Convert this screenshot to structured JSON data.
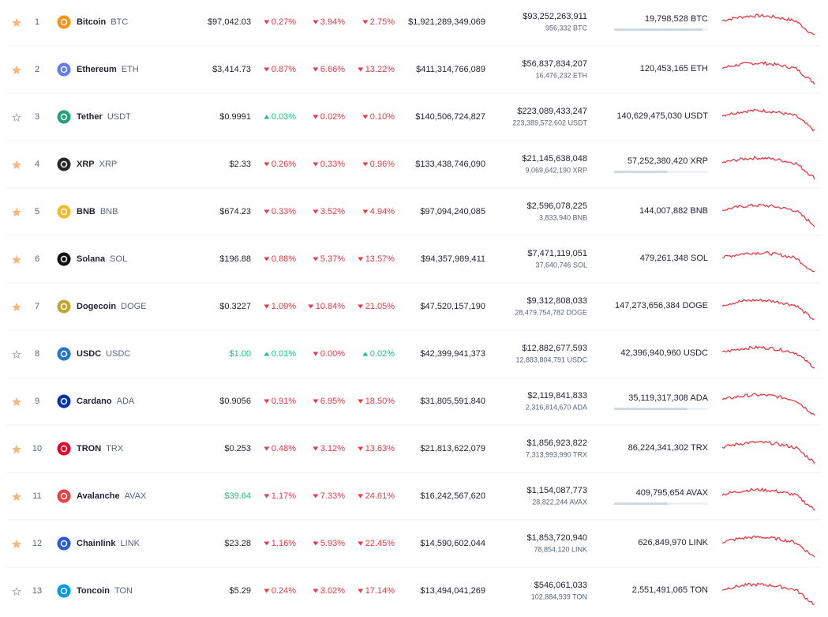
{
  "table": {
    "rows": [
      {
        "rank": "1",
        "name": "Bitcoin",
        "symbol": "BTC",
        "icon_color": "#f7931a",
        "starred": true,
        "price": "$97,042.03",
        "price_up": null,
        "change_1h": {
          "text": "0.27%",
          "up": false
        },
        "change_24h": {
          "text": "3.94%",
          "up": false
        },
        "change_7d": {
          "text": "2.75%",
          "up": false
        },
        "market_cap": "$1,921,289,349,069",
        "volume": "$93,252,263,911",
        "volume_coin": "956,332 BTC",
        "supply": "19,798,528 BTC",
        "supply_bar": 0.94
      },
      {
        "rank": "2",
        "name": "Ethereum",
        "symbol": "ETH",
        "icon_color": "#627eea",
        "starred": true,
        "price": "$3,414.73",
        "price_up": null,
        "change_1h": {
          "text": "0.87%",
          "up": false
        },
        "change_24h": {
          "text": "6.66%",
          "up": false
        },
        "change_7d": {
          "text": "13.22%",
          "up": false
        },
        "market_cap": "$411,314,766,089",
        "volume": "$56,837,834,207",
        "volume_coin": "16,476,232 ETH",
        "supply": "120,453,165 ETH",
        "supply_bar": null
      },
      {
        "rank": "3",
        "name": "Tether",
        "symbol": "USDT",
        "icon_color": "#26a17b",
        "starred": false,
        "price": "$0.9991",
        "price_up": null,
        "change_1h": {
          "text": "0.03%",
          "up": true
        },
        "change_24h": {
          "text": "0.02%",
          "up": false
        },
        "change_7d": {
          "text": "0.10%",
          "up": false
        },
        "market_cap": "$140,506,724,827",
        "volume": "$223,089,433,247",
        "volume_coin": "223,389,572,602 USDT",
        "supply": "140,629,475,030 USDT",
        "supply_bar": null
      },
      {
        "rank": "4",
        "name": "XRP",
        "symbol": "XRP",
        "icon_color": "#23292f",
        "starred": true,
        "price": "$2.33",
        "price_up": null,
        "change_1h": {
          "text": "0.26%",
          "up": false
        },
        "change_24h": {
          "text": "0.33%",
          "up": false
        },
        "change_7d": {
          "text": "0.96%",
          "up": false
        },
        "market_cap": "$133,438,746,090",
        "volume": "$21,145,638,048",
        "volume_coin": "9,069,642,190 XRP",
        "supply": "57,252,380,420 XRP",
        "supply_bar": 0.57
      },
      {
        "rank": "5",
        "name": "BNB",
        "symbol": "BNB",
        "icon_color": "#f3ba2f",
        "starred": true,
        "price": "$674.23",
        "price_up": null,
        "change_1h": {
          "text": "0.33%",
          "up": false
        },
        "change_24h": {
          "text": "3.52%",
          "up": false
        },
        "change_7d": {
          "text": "4.94%",
          "up": false
        },
        "market_cap": "$97,094,240,085",
        "volume": "$2,596,078,225",
        "volume_coin": "3,833,940 BNB",
        "supply": "144,007,882 BNB",
        "supply_bar": null
      },
      {
        "rank": "6",
        "name": "Solana",
        "symbol": "SOL",
        "icon_color": "#111111",
        "starred": true,
        "price": "$196.88",
        "price_up": null,
        "change_1h": {
          "text": "0.88%",
          "up": false
        },
        "change_24h": {
          "text": "5.37%",
          "up": false
        },
        "change_7d": {
          "text": "13.57%",
          "up": false
        },
        "market_cap": "$94,357,989,411",
        "volume": "$7,471,119,051",
        "volume_coin": "37,640,746 SOL",
        "supply": "479,261,348 SOL",
        "supply_bar": null
      },
      {
        "rank": "7",
        "name": "Dogecoin",
        "symbol": "DOGE",
        "icon_color": "#c2a633",
        "starred": true,
        "price": "$0.3227",
        "price_up": null,
        "change_1h": {
          "text": "1.09%",
          "up": false
        },
        "change_24h": {
          "text": "10.84%",
          "up": false
        },
        "change_7d": {
          "text": "21.05%",
          "up": false
        },
        "market_cap": "$47,520,157,190",
        "volume": "$9,312,808,033",
        "volume_coin": "28,479,754,782 DOGE",
        "supply": "147,273,656,384 DOGE",
        "supply_bar": null
      },
      {
        "rank": "8",
        "name": "USDC",
        "symbol": "USDC",
        "icon_color": "#2775ca",
        "starred": false,
        "price": "$1.00",
        "price_up": true,
        "change_1h": {
          "text": "0.01%",
          "up": true
        },
        "change_24h": {
          "text": "0.00%",
          "up": false
        },
        "change_7d": {
          "text": "0.02%",
          "up": true
        },
        "market_cap": "$42,399,941,373",
        "volume": "$12,882,677,593",
        "volume_coin": "12,883,804,791 USDC",
        "supply": "42,396,940,960 USDC",
        "supply_bar": null
      },
      {
        "rank": "9",
        "name": "Cardano",
        "symbol": "ADA",
        "icon_color": "#0033ad",
        "starred": true,
        "price": "$0.9056",
        "price_up": null,
        "change_1h": {
          "text": "0.91%",
          "up": false
        },
        "change_24h": {
          "text": "6.95%",
          "up": false
        },
        "change_7d": {
          "text": "18.50%",
          "up": false
        },
        "market_cap": "$31,805,591,840",
        "volume": "$2,119,841,833",
        "volume_coin": "2,316,814,670 ADA",
        "supply": "35,119,317,308 ADA",
        "supply_bar": 0.78
      },
      {
        "rank": "10",
        "name": "TRON",
        "symbol": "TRX",
        "icon_color": "#eb0029",
        "starred": true,
        "price": "$0.253",
        "price_up": null,
        "change_1h": {
          "text": "0.48%",
          "up": false
        },
        "change_24h": {
          "text": "3.12%",
          "up": false
        },
        "change_7d": {
          "text": "13.63%",
          "up": false
        },
        "market_cap": "$21,813,622,079",
        "volume": "$1,856,923,822",
        "volume_coin": "7,313,993,990 TRX",
        "supply": "86,224,341,302 TRX",
        "supply_bar": null
      },
      {
        "rank": "11",
        "name": "Avalanche",
        "symbol": "AVAX",
        "icon_color": "#e84142",
        "starred": true,
        "price": "$39.64",
        "price_up": true,
        "change_1h": {
          "text": "1.17%",
          "up": false
        },
        "change_24h": {
          "text": "7.33%",
          "up": false
        },
        "change_7d": {
          "text": "24.61%",
          "up": false
        },
        "market_cap": "$16,242,567,620",
        "volume": "$1,154,087,773",
        "volume_coin": "28,822,244 AVAX",
        "supply": "409,795,654 AVAX",
        "supply_bar": 0.57
      },
      {
        "rank": "12",
        "name": "Chainlink",
        "symbol": "LINK",
        "icon_color": "#2a5ada",
        "starred": true,
        "price": "$23.28",
        "price_up": null,
        "change_1h": {
          "text": "1.16%",
          "up": false
        },
        "change_24h": {
          "text": "5.93%",
          "up": false
        },
        "change_7d": {
          "text": "22.45%",
          "up": false
        },
        "market_cap": "$14,590,602,044",
        "volume": "$1,853,720,940",
        "volume_coin": "78,854,120 LINK",
        "supply": "626,849,970 LINK",
        "supply_bar": null
      },
      {
        "rank": "13",
        "name": "Toncoin",
        "symbol": "TON",
        "icon_color": "#0098ea",
        "starred": false,
        "price": "$5.29",
        "price_up": null,
        "change_1h": {
          "text": "0.24%",
          "up": false
        },
        "change_24h": {
          "text": "3.02%",
          "up": false
        },
        "change_7d": {
          "text": "17.14%",
          "up": false
        },
        "market_cap": "$13,494,041,269",
        "volume": "$546,061,033",
        "volume_coin": "102,884,939 TON",
        "supply": "2,551,491,065 TON",
        "supply_bar": null
      }
    ]
  }
}
